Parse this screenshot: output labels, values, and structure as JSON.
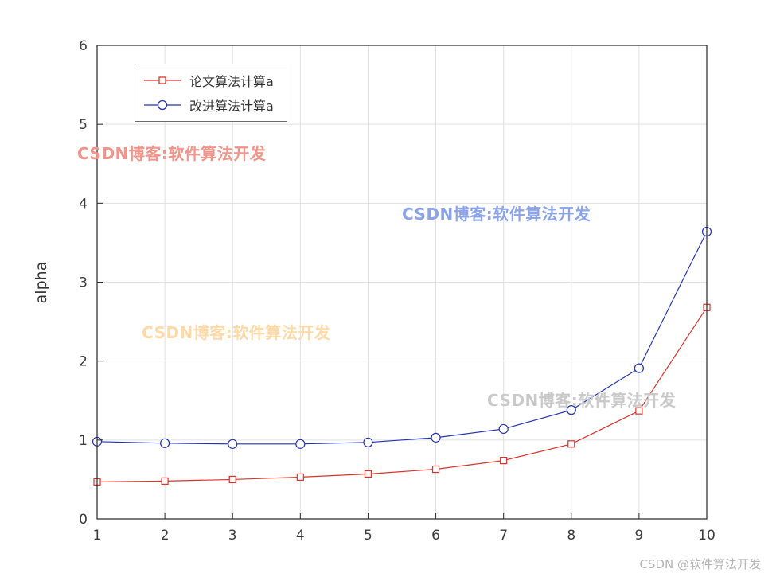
{
  "chart_data": {
    "type": "line",
    "x": [
      1,
      2,
      3,
      4,
      5,
      6,
      7,
      8,
      9,
      10
    ],
    "series": [
      {
        "name": "论文算法计算a",
        "color": "#d9332a",
        "marker": "square",
        "values": [
          0.47,
          0.48,
          0.5,
          0.53,
          0.57,
          0.63,
          0.74,
          0.95,
          1.37,
          2.68
        ]
      },
      {
        "name": "改进算法计算a",
        "color": "#2433b0",
        "marker": "circle",
        "values": [
          0.98,
          0.96,
          0.95,
          0.95,
          0.97,
          1.03,
          1.14,
          1.38,
          1.91,
          3.64
        ]
      }
    ],
    "title": "",
    "xlabel": "",
    "ylabel": "alpha",
    "xlim": [
      1,
      10
    ],
    "ylim": [
      0,
      6
    ],
    "xticks": [
      1,
      2,
      3,
      4,
      5,
      6,
      7,
      8,
      9,
      10
    ],
    "yticks": [
      0,
      1,
      2,
      3,
      4,
      5,
      6
    ],
    "grid": true,
    "legend_position": "top-left"
  },
  "watermarks": [
    {
      "text": "CSDN博客:软件算法开发",
      "color": "#f2948a"
    },
    {
      "text": "CSDN博客:软件算法开发",
      "color": "#8ba3e8"
    },
    {
      "text": "CSDN博客:软件算法开发",
      "color": "#ffd9a6"
    },
    {
      "text": "CSDN博客:软件算法开发",
      "color": "#c9c9c9"
    }
  ],
  "footer": {
    "text": "CSDN @软件算法开发",
    "color": "#b3b3b3"
  }
}
